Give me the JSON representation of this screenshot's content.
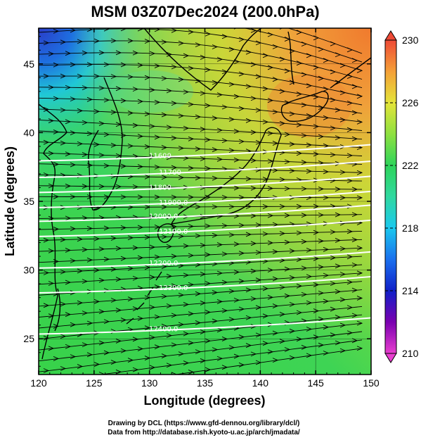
{
  "title": "MSM 03Z07Dec2024 (200.0hPa)",
  "x_axis": {
    "label": "Longitude (degrees)",
    "ticks": [
      "120",
      "125",
      "130",
      "135",
      "140",
      "145",
      "150"
    ],
    "range": [
      120,
      150
    ]
  },
  "y_axis": {
    "label": "Latitude  (degrees)",
    "ticks": [
      "25",
      "30",
      "35",
      "40",
      "45"
    ],
    "range": [
      22.4,
      47.6
    ]
  },
  "colorbar": {
    "labels": [
      "230",
      "226",
      "222",
      "218",
      "214",
      "210"
    ],
    "range": [
      210,
      230
    ],
    "colors": [
      "#e83ecf",
      "#7a00b0",
      "#1020c8",
      "#1aa0ee",
      "#30d8c0",
      "#2ed45a",
      "#8ee040",
      "#e4e43a",
      "#f4a038",
      "#ee4a36"
    ]
  },
  "contours": [
    {
      "label": "11600",
      "lat": 38.2
    },
    {
      "label": "11700",
      "lat": 37.0
    },
    {
      "label": "11800",
      "lat": 35.9
    },
    {
      "label": "11900.0",
      "lat": 34.8
    },
    {
      "label": "12000.0",
      "lat": 33.8
    },
    {
      "label": "12100.0",
      "lat": 32.7
    },
    {
      "label": "12200.0",
      "lat": 30.4
    },
    {
      "label": "12300.0",
      "lat": 28.6
    },
    {
      "label": "12400.0",
      "lat": 25.6
    }
  ],
  "credits": {
    "line1": "Drawing by DCL (https://www.gfd-dennou.org/library/dcl/)",
    "line2": "Data from http://database.rish.kyoto-u.ac.jp/arch/jmadata/"
  }
}
